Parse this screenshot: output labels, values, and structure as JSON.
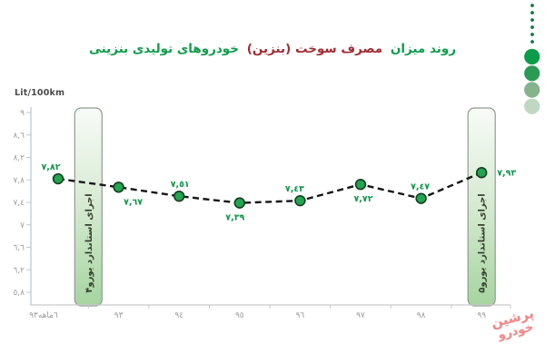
{
  "title": {
    "part1": "روند میزان",
    "part2": "مصرف سوخت (بنزین)",
    "part3": "خودروهای تولیدی بنزینی"
  },
  "unit_label": "Lit/100km",
  "chart_data": {
    "type": "line",
    "line_style": "dashed",
    "title": "روند میزان مصرف سوخت (بنزین) خودروهای تولیدی بنزینی",
    "ylabel": "Lit/100km",
    "categories": [
      "٦ماهه٩٣",
      "٩٣",
      "٩٤",
      "٩٥",
      "٩٦",
      "٩٧",
      "٩٨",
      "٩٩"
    ],
    "values": [
      7.82,
      7.67,
      7.51,
      7.39,
      7.43,
      7.72,
      7.47,
      7.93
    ],
    "value_labels": [
      "٧,٨٢",
      "٧,٦٧",
      "٧,٥١",
      "٧,٣٩",
      "٧,٤٣",
      "٧,٧٢",
      "٧,٤٧",
      "٧,٩٣"
    ],
    "label_placement": [
      "above",
      "below",
      "above",
      "below",
      "above",
      "below",
      "above",
      "right"
    ],
    "y_ticks": [
      9,
      8.6,
      8.2,
      7.8,
      7.4,
      7,
      6.6,
      6.2,
      5.8
    ],
    "y_tick_labels": [
      "٩",
      "٨,٦",
      "٨,٢",
      "٧,٨",
      "٧,٤",
      "٧",
      "٦,٦",
      "٦,٢",
      "٥,٨"
    ],
    "ylim": [
      5.8,
      9
    ],
    "grid": false,
    "legend": "none",
    "annotations": [
      {
        "text": "اجرای استاندارد یورو۴",
        "x_index": 0.5
      },
      {
        "text": "اجرای استاندارد یورو۵",
        "x_index": 7
      }
    ]
  },
  "colors": {
    "title_green": "#0e9c4a",
    "title_red": "#a12b32",
    "line": "#171717",
    "point_fill": "#23a450",
    "point_border": "#123f1f",
    "value_label": "#0e9749",
    "axis_text": "#9b9b9b",
    "axis_line": "#bcc5cb",
    "bar_top": "#f8fbf7",
    "bar_bottom": "#a6d4a0",
    "bar_border": "#8f9b90",
    "bar_text": "#37402f",
    "watermark": "#ef8a8a"
  },
  "decoration": {
    "small_dot_color": "#0d7a3c",
    "small_dot_count": 6,
    "circle_colors": [
      "#0a9c48",
      "#2b9b53",
      "#84b38c",
      "#c0d8c2"
    ]
  },
  "watermark": {
    "line1": "پرشین",
    "line2": "خودرو"
  }
}
